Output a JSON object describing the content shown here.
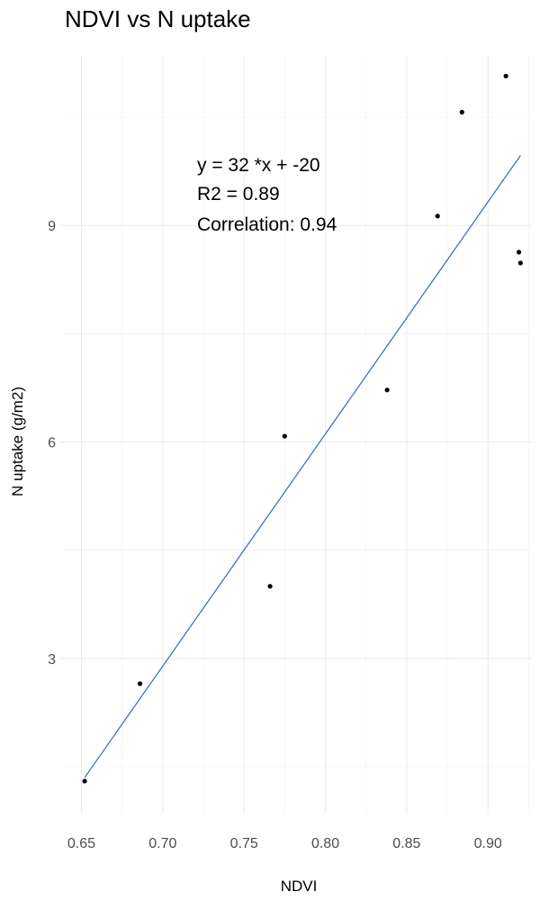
{
  "chart_data": {
    "type": "scatter",
    "title": "NDVI vs N uptake",
    "xlabel": "NDVI",
    "ylabel": "N uptake (g/m2)",
    "xlim": [
      0.637,
      0.927
    ],
    "ylim": [
      0.85,
      11.35
    ],
    "x_ticks": [
      0.65,
      0.7,
      0.75,
      0.8,
      0.85,
      0.9
    ],
    "x_tick_labels": [
      "0.65",
      "0.70",
      "0.75",
      "0.80",
      "0.85",
      "0.90"
    ],
    "y_ticks": [
      3,
      6,
      9
    ],
    "y_tick_labels": [
      "3",
      "6",
      "9"
    ],
    "grid": true,
    "points": [
      {
        "x": 0.652,
        "y": 1.3
      },
      {
        "x": 0.686,
        "y": 2.65
      },
      {
        "x": 0.766,
        "y": 4.0
      },
      {
        "x": 0.775,
        "y": 6.08
      },
      {
        "x": 0.838,
        "y": 6.72
      },
      {
        "x": 0.869,
        "y": 9.13
      },
      {
        "x": 0.884,
        "y": 10.57
      },
      {
        "x": 0.911,
        "y": 11.07
      },
      {
        "x": 0.919,
        "y": 8.63
      },
      {
        "x": 0.92,
        "y": 8.48
      }
    ],
    "fit_line": {
      "x": [
        0.652,
        0.92
      ],
      "y": [
        1.35,
        9.97
      ],
      "color": "#3366cc"
    },
    "annotations": [
      "y = 32 *x + -20",
      "R2 = 0.89",
      "Correlation: 0.94"
    ],
    "point_color": "#000000"
  }
}
